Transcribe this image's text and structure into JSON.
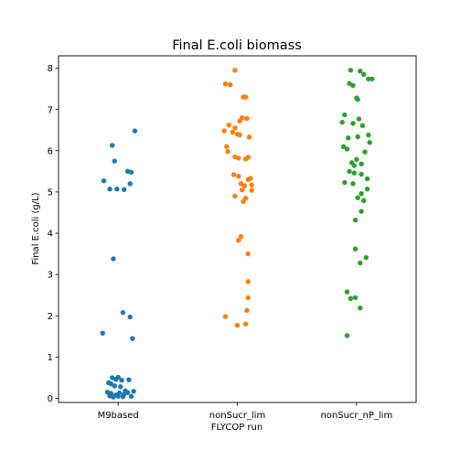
{
  "chart_data": {
    "type": "scatter",
    "title": "Final E.coli biomass",
    "xlabel": "FLYCOP run",
    "ylabel": "Final E.coli (g/L)",
    "ylim": [
      -0.1,
      8.3
    ],
    "yticks": [
      0,
      1,
      2,
      3,
      4,
      5,
      6,
      7,
      8
    ],
    "grid": false,
    "categories": [
      "M9based",
      "nonSucr_lim",
      "nonSucr_nP_lim"
    ],
    "series": [
      {
        "category": "M9based",
        "color": "#1f77b4",
        "points": [
          {
            "jitter": 0.14,
            "y": 6.48
          },
          {
            "jitter": -0.05,
            "y": 6.13
          },
          {
            "jitter": -0.03,
            "y": 5.75
          },
          {
            "jitter": 0.08,
            "y": 5.5
          },
          {
            "jitter": 0.11,
            "y": 5.48
          },
          {
            "jitter": -0.12,
            "y": 5.27
          },
          {
            "jitter": 0.1,
            "y": 5.2
          },
          {
            "jitter": -0.07,
            "y": 5.07
          },
          {
            "jitter": -0.01,
            "y": 5.07
          },
          {
            "jitter": 0.05,
            "y": 5.06
          },
          {
            "jitter": -0.04,
            "y": 3.38
          },
          {
            "jitter": 0.04,
            "y": 2.08
          },
          {
            "jitter": 0.1,
            "y": 1.97
          },
          {
            "jitter": -0.13,
            "y": 1.58
          },
          {
            "jitter": 0.12,
            "y": 1.45
          },
          {
            "jitter": -0.05,
            "y": 0.5
          },
          {
            "jitter": 0.0,
            "y": 0.51
          },
          {
            "jitter": -0.02,
            "y": 0.46
          },
          {
            "jitter": 0.03,
            "y": 0.44
          },
          {
            "jitter": 0.09,
            "y": 0.45
          },
          {
            "jitter": -0.08,
            "y": 0.38
          },
          {
            "jitter": -0.06,
            "y": 0.35
          },
          {
            "jitter": -0.03,
            "y": 0.3
          },
          {
            "jitter": 0.02,
            "y": 0.28
          },
          {
            "jitter": 0.06,
            "y": 0.18
          },
          {
            "jitter": -0.09,
            "y": 0.15
          },
          {
            "jitter": 0.13,
            "y": 0.17
          },
          {
            "jitter": 0.08,
            "y": 0.14
          },
          {
            "jitter": -0.06,
            "y": 0.12
          },
          {
            "jitter": 0.01,
            "y": 0.13
          },
          {
            "jitter": 0.05,
            "y": 0.1
          },
          {
            "jitter": -0.02,
            "y": 0.08
          },
          {
            "jitter": -0.07,
            "y": 0.06
          },
          {
            "jitter": 0.0,
            "y": 0.05
          },
          {
            "jitter": 0.04,
            "y": 0.04
          },
          {
            "jitter": -0.04,
            "y": 0.03
          },
          {
            "jitter": 0.11,
            "y": 0.05
          }
        ]
      },
      {
        "category": "nonSucr_lim",
        "color": "#ff7f0e",
        "points": [
          {
            "jitter": -0.02,
            "y": 7.95
          },
          {
            "jitter": -0.1,
            "y": 7.62
          },
          {
            "jitter": -0.06,
            "y": 7.6
          },
          {
            "jitter": 0.05,
            "y": 7.3
          },
          {
            "jitter": 0.07,
            "y": 7.3
          },
          {
            "jitter": 0.04,
            "y": 6.8
          },
          {
            "jitter": 0.08,
            "y": 6.78
          },
          {
            "jitter": 0.02,
            "y": 6.72
          },
          {
            "jitter": -0.07,
            "y": 6.62
          },
          {
            "jitter": -0.02,
            "y": 6.55
          },
          {
            "jitter": -0.11,
            "y": 6.48
          },
          {
            "jitter": -0.04,
            "y": 6.45
          },
          {
            "jitter": 0.0,
            "y": 6.4
          },
          {
            "jitter": 0.02,
            "y": 6.38
          },
          {
            "jitter": 0.1,
            "y": 6.33
          },
          {
            "jitter": -0.09,
            "y": 6.1
          },
          {
            "jitter": -0.08,
            "y": 5.98
          },
          {
            "jitter": -0.02,
            "y": 5.85
          },
          {
            "jitter": 0.01,
            "y": 5.82
          },
          {
            "jitter": 0.07,
            "y": 5.8
          },
          {
            "jitter": 0.09,
            "y": 5.84
          },
          {
            "jitter": -0.03,
            "y": 5.42
          },
          {
            "jitter": 0.01,
            "y": 5.38
          },
          {
            "jitter": 0.11,
            "y": 5.33
          },
          {
            "jitter": 0.09,
            "y": 5.3
          },
          {
            "jitter": 0.03,
            "y": 5.2
          },
          {
            "jitter": 0.06,
            "y": 5.15
          },
          {
            "jitter": 0.12,
            "y": 5.17
          },
          {
            "jitter": 0.04,
            "y": 5.05
          },
          {
            "jitter": 0.12,
            "y": 5.04
          },
          {
            "jitter": -0.02,
            "y": 4.9
          },
          {
            "jitter": 0.07,
            "y": 4.85
          },
          {
            "jitter": 0.05,
            "y": 4.77
          },
          {
            "jitter": 0.03,
            "y": 3.92
          },
          {
            "jitter": 0.01,
            "y": 3.83
          },
          {
            "jitter": 0.09,
            "y": 3.5
          },
          {
            "jitter": 0.09,
            "y": 2.83
          },
          {
            "jitter": 0.09,
            "y": 2.44
          },
          {
            "jitter": 0.08,
            "y": 2.13
          },
          {
            "jitter": -0.1,
            "y": 1.98
          },
          {
            "jitter": 0.0,
            "y": 1.77
          },
          {
            "jitter": 0.07,
            "y": 1.8
          }
        ]
      },
      {
        "category": "nonSucr_nP_lim",
        "color": "#2ca02c",
        "points": [
          {
            "jitter": -0.05,
            "y": 7.95
          },
          {
            "jitter": 0.03,
            "y": 7.93
          },
          {
            "jitter": 0.06,
            "y": 7.85
          },
          {
            "jitter": 0.1,
            "y": 7.74
          },
          {
            "jitter": 0.13,
            "y": 7.74
          },
          {
            "jitter": -0.06,
            "y": 7.63
          },
          {
            "jitter": -0.03,
            "y": 7.58
          },
          {
            "jitter": 0.0,
            "y": 7.28
          },
          {
            "jitter": 0.01,
            "y": 7.24
          },
          {
            "jitter": -0.1,
            "y": 6.87
          },
          {
            "jitter": 0.02,
            "y": 6.77
          },
          {
            "jitter": -0.12,
            "y": 6.69
          },
          {
            "jitter": -0.03,
            "y": 6.66
          },
          {
            "jitter": 0.05,
            "y": 6.61
          },
          {
            "jitter": 0.1,
            "y": 6.38
          },
          {
            "jitter": -0.07,
            "y": 6.31
          },
          {
            "jitter": 0.01,
            "y": 6.34
          },
          {
            "jitter": 0.11,
            "y": 6.2
          },
          {
            "jitter": -0.11,
            "y": 6.1
          },
          {
            "jitter": -0.08,
            "y": 6.04
          },
          {
            "jitter": 0.07,
            "y": 5.97
          },
          {
            "jitter": 0.0,
            "y": 5.79
          },
          {
            "jitter": -0.04,
            "y": 5.71
          },
          {
            "jitter": 0.04,
            "y": 5.68
          },
          {
            "jitter": -0.02,
            "y": 5.64
          },
          {
            "jitter": -0.06,
            "y": 5.5
          },
          {
            "jitter": -0.02,
            "y": 5.46
          },
          {
            "jitter": 0.04,
            "y": 5.43
          },
          {
            "jitter": 0.09,
            "y": 5.32
          },
          {
            "jitter": -0.1,
            "y": 5.23
          },
          {
            "jitter": -0.03,
            "y": 5.2
          },
          {
            "jitter": 0.09,
            "y": 5.07
          },
          {
            "jitter": 0.04,
            "y": 4.96
          },
          {
            "jitter": 0.01,
            "y": 4.86
          },
          {
            "jitter": 0.06,
            "y": 4.79
          },
          {
            "jitter": 0.04,
            "y": 4.53
          },
          {
            "jitter": -0.01,
            "y": 4.32
          },
          {
            "jitter": -0.01,
            "y": 3.62
          },
          {
            "jitter": 0.08,
            "y": 3.41
          },
          {
            "jitter": 0.03,
            "y": 3.28
          },
          {
            "jitter": -0.08,
            "y": 2.58
          },
          {
            "jitter": -0.05,
            "y": 2.42
          },
          {
            "jitter": -0.01,
            "y": 2.44
          },
          {
            "jitter": 0.03,
            "y": 2.19
          },
          {
            "jitter": -0.08,
            "y": 1.52
          }
        ]
      }
    ]
  }
}
